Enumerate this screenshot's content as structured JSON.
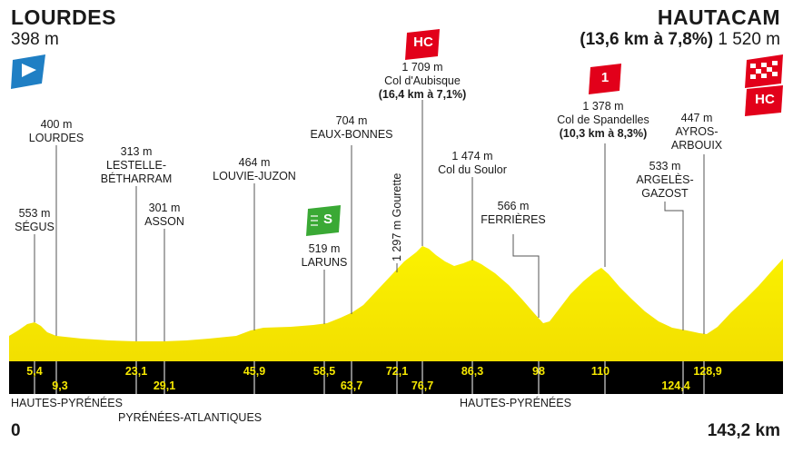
{
  "start": {
    "name": "LOURDES",
    "altitude": "398 m"
  },
  "finish": {
    "name": "HAUTACAM",
    "climb": "(13,6 km à 7,8%)",
    "altitude": "1 520 m"
  },
  "points": [
    {
      "alt": "553 m",
      "name": "SÉGUS"
    },
    {
      "alt": "400 m",
      "name": "LOURDES"
    },
    {
      "alt": "313 m",
      "name": "LESTELLE-\nBÉTHARRAM"
    },
    {
      "alt": "301 m",
      "name": "ASSON"
    },
    {
      "alt": "464 m",
      "name": "LOUVIE-JUZON"
    },
    {
      "alt": "519 m",
      "name": "LARUNS"
    },
    {
      "alt": "704 m",
      "name": "EAUX-BONNES"
    },
    {
      "alt": "1 297 m Gourette",
      "name": ""
    },
    {
      "alt": "1 709 m",
      "name": "Col d'Aubisque",
      "climb": "(16,4 km à 7,1%)"
    },
    {
      "alt": "1 474 m",
      "name": "Col du Soulor"
    },
    {
      "alt": "566 m",
      "name": "FERRIÈRES"
    },
    {
      "alt": "1 378 m",
      "name": "Col de Spandelles",
      "climb": "(10,3 km à 8,3%)"
    },
    {
      "alt": "533 m",
      "name": "ARGELÈS-\nGAZOST"
    },
    {
      "alt": "447 m",
      "name": "AYROS-\nARBOUIX"
    }
  ],
  "km_markers": [
    "5,4",
    "9,3",
    "23,1",
    "29,1",
    "45,9",
    "58,5",
    "63,7",
    "72,1",
    "76,7",
    "86,3",
    "98",
    "110",
    "124,4",
    "128,9"
  ],
  "badges": {
    "sprint": "S",
    "hc": "HC",
    "cat1": "1"
  },
  "departments": [
    "HAUTES-PYRÉNÉES",
    "PYRÉNÉES-ATLANTIQUES",
    "HAUTES-PYRÉNÉES"
  ],
  "distance": {
    "start": "0",
    "end": "143,2 km"
  },
  "colors": {
    "profile": "#f7e900",
    "profile_dark": "#e3c800",
    "band": "#000000",
    "hc": "#e2001a",
    "sprint": "#3aa935",
    "start_flag": "#1f7fc4"
  }
}
